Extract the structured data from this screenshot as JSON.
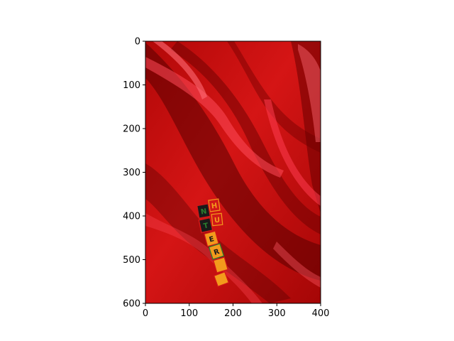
{
  "chart_data": {
    "type": "image",
    "title": "",
    "xlabel": "",
    "ylabel": "",
    "xlim": [
      0,
      400
    ],
    "ylim": [
      600,
      0
    ],
    "x_ticks": [
      0,
      100,
      200,
      300,
      400
    ],
    "y_ticks": [
      0,
      100,
      200,
      300,
      400,
      500,
      600
    ],
    "image_content": {
      "description": "red satin fabric with letter tiles",
      "tile_texts": [
        "H",
        "U",
        "N",
        "T",
        "E",
        "R"
      ],
      "colors": {
        "fabric_base": "#c80d0d",
        "fabric_dark": "#5a0000",
        "fabric_highlight": "#ff4a5a",
        "tile_orange": "#f39a1c",
        "tile_green": "#2a7f2f",
        "tile_red": "#d11818",
        "tile_black": "#1a1a1a"
      }
    }
  }
}
